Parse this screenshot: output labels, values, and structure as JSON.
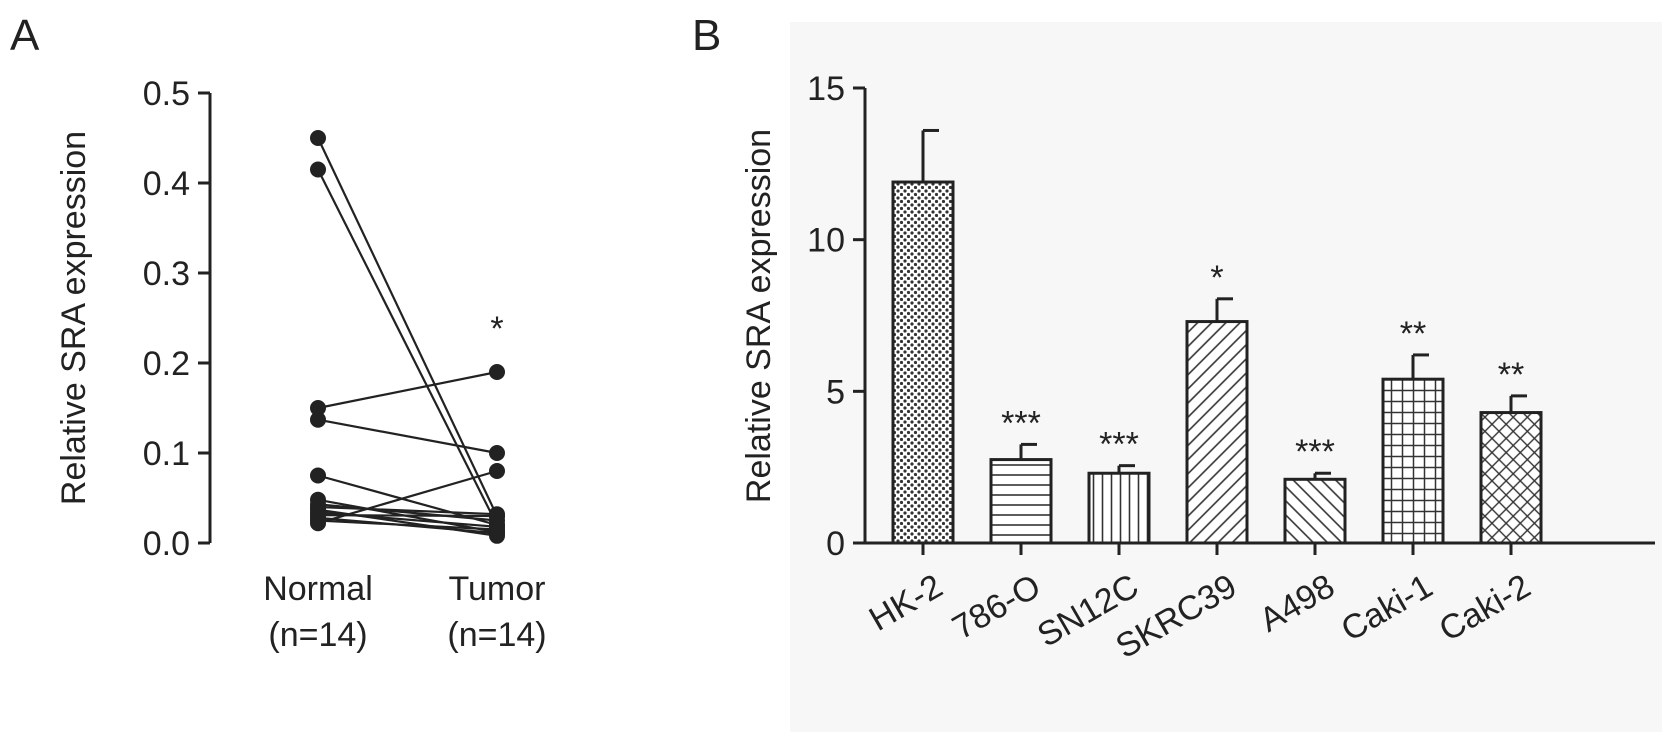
{
  "chart_data": [
    {
      "panel": "A",
      "type": "scatter",
      "paired": true,
      "ylabel": "Relative SRA expression",
      "ylim": [
        0,
        0.5
      ],
      "yticks": [
        0.0,
        0.1,
        0.2,
        0.3,
        0.4,
        0.5
      ],
      "ytick_labels": [
        "0.0",
        "0.1",
        "0.2",
        "0.3",
        "0.4",
        "0.5"
      ],
      "categories": [
        "Normal\n(n=14)",
        "Tumor\n(n=14)"
      ],
      "category_lines": [
        [
          "Normal",
          "(n=14)"
        ],
        [
          "Tumor",
          "(n=14)"
        ]
      ],
      "pairs": [
        {
          "normal": 0.45,
          "tumor": 0.03
        },
        {
          "normal": 0.415,
          "tumor": 0.02
        },
        {
          "normal": 0.15,
          "tumor": 0.19
        },
        {
          "normal": 0.137,
          "tumor": 0.1
        },
        {
          "normal": 0.075,
          "tumor": 0.02
        },
        {
          "normal": 0.048,
          "tumor": 0.012
        },
        {
          "normal": 0.043,
          "tumor": 0.025
        },
        {
          "normal": 0.04,
          "tumor": 0.032
        },
        {
          "normal": 0.037,
          "tumor": 0.008
        },
        {
          "normal": 0.034,
          "tumor": 0.018
        },
        {
          "normal": 0.031,
          "tumor": 0.03
        },
        {
          "normal": 0.028,
          "tumor": 0.011
        },
        {
          "normal": 0.025,
          "tumor": 0.015
        },
        {
          "normal": 0.022,
          "tumor": 0.08
        }
      ],
      "annotations": [
        {
          "category": 1,
          "text": "*"
        }
      ]
    },
    {
      "panel": "B",
      "type": "bar",
      "ylabel": "Relative SRA expression",
      "ylim": [
        0,
        15
      ],
      "yticks": [
        0,
        5,
        10,
        15
      ],
      "ytick_labels": [
        "0",
        "5",
        "10",
        "15"
      ],
      "categories": [
        "HK-2",
        "786-O",
        "SN12C",
        "SKRC39",
        "A498",
        "Caki-1",
        "Caki-2"
      ],
      "values": [
        11.9,
        2.75,
        2.3,
        7.3,
        2.1,
        5.4,
        4.3
      ],
      "errors": [
        1.7,
        0.5,
        0.25,
        0.75,
        0.2,
        0.8,
        0.55
      ],
      "patterns": [
        "dots",
        "horizontal",
        "vertical",
        "diagonal-up",
        "diagonal-down",
        "grid",
        "crosshatch"
      ],
      "significance": [
        "",
        "***",
        "***",
        "*",
        "***",
        "**",
        "**"
      ]
    }
  ],
  "panel_labels": [
    "A",
    "B"
  ],
  "colors": {
    "ink": "#222222",
    "bar_fill": "#ffffff",
    "background": "#ffffff",
    "panel_b_background": "#f7f7f7"
  }
}
